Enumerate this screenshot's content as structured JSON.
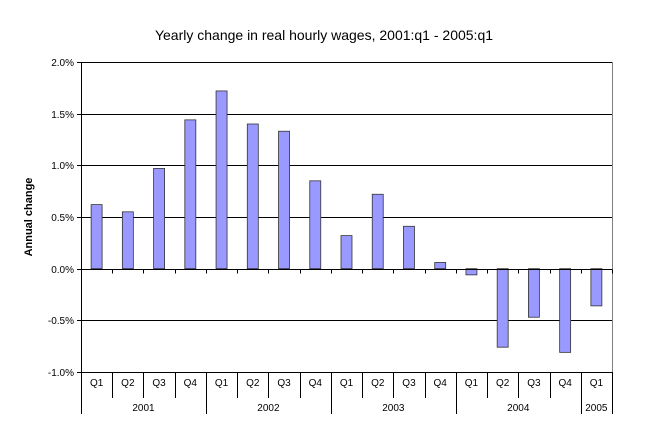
{
  "chart_data": {
    "type": "bar",
    "title": "Yearly change in real hourly wages, 2001:q1 - 2005:q1",
    "xlabel": "",
    "ylabel": "Annual change",
    "ylim": [
      -1.0,
      2.0
    ],
    "yticks": [
      "2.0%",
      "1.5%",
      "1.0%",
      "0.5%",
      "0.0%",
      "-0.5%",
      "-1.0%"
    ],
    "ytick_values": [
      2.0,
      1.5,
      1.0,
      0.5,
      0.0,
      -0.5,
      -1.0
    ],
    "grid": true,
    "legend": "none",
    "colors": {
      "bar_fill": "#9999ff",
      "bar_stroke": "#333333",
      "grid": "#000000",
      "plot_border": "#808080"
    },
    "categories": [
      "Q1",
      "Q2",
      "Q3",
      "Q4",
      "Q1",
      "Q2",
      "Q3",
      "Q4",
      "Q1",
      "Q2",
      "Q3",
      "Q4",
      "Q1",
      "Q2",
      "Q3",
      "Q4",
      "Q1"
    ],
    "years": [
      {
        "label": "2001",
        "count": 4
      },
      {
        "label": "2002",
        "count": 4
      },
      {
        "label": "2003",
        "count": 4
      },
      {
        "label": "2004",
        "count": 4
      },
      {
        "label": "2005",
        "count": 1
      }
    ],
    "values": [
      0.62,
      0.55,
      0.97,
      1.44,
      1.72,
      1.4,
      1.33,
      0.85,
      0.32,
      0.72,
      0.41,
      0.06,
      -0.06,
      -0.76,
      -0.47,
      -0.81,
      -0.36
    ]
  }
}
